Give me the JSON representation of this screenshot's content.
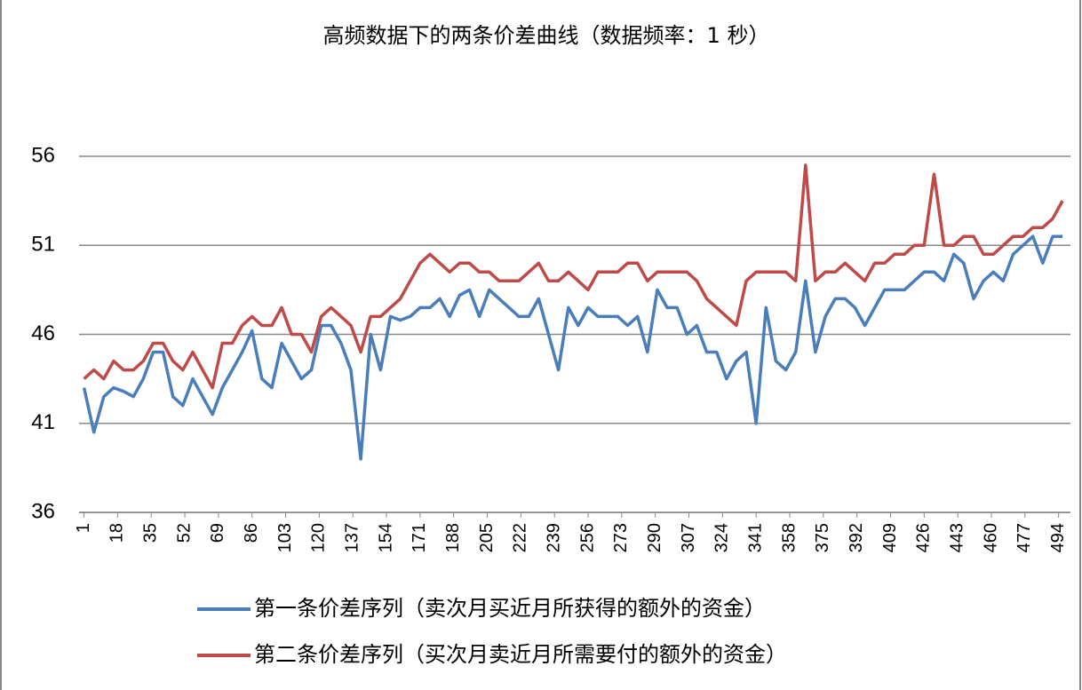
{
  "chart_data": {
    "type": "line",
    "title": "高频数据下的两条价差曲线（数据频率：1 秒）",
    "x": [
      1,
      6,
      11,
      16,
      21,
      26,
      31,
      36,
      41,
      46,
      51,
      56,
      61,
      66,
      71,
      76,
      81,
      86,
      91,
      96,
      101,
      106,
      111,
      116,
      121,
      126,
      131,
      136,
      141,
      146,
      151,
      156,
      161,
      166,
      171,
      176,
      181,
      186,
      191,
      196,
      201,
      206,
      211,
      216,
      221,
      226,
      231,
      236,
      241,
      246,
      251,
      256,
      261,
      266,
      271,
      276,
      281,
      286,
      291,
      296,
      301,
      306,
      311,
      316,
      321,
      326,
      331,
      336,
      341,
      346,
      351,
      356,
      361,
      366,
      371,
      376,
      381,
      386,
      391,
      396,
      401,
      406,
      411,
      416,
      421,
      426,
      431,
      436,
      441,
      446,
      451,
      456,
      461,
      466,
      471,
      476,
      481,
      486,
      491,
      496
    ],
    "series": [
      {
        "name": "第一条价差序列（卖次月买近月所获得的额外的资金）",
        "color": "#4a7ebb",
        "values": [
          43,
          40.5,
          42.5,
          43,
          42.8,
          42.5,
          43.5,
          45,
          45,
          42.5,
          42,
          43.5,
          42.5,
          41.5,
          43,
          44,
          45,
          46.2,
          43.5,
          43,
          45.5,
          44.5,
          43.5,
          44,
          46.5,
          46.5,
          45.5,
          44,
          39,
          46,
          44,
          47,
          46.8,
          47,
          47.5,
          47.5,
          48,
          47,
          48.2,
          48.5,
          47,
          48.5,
          48,
          47.5,
          47,
          47,
          48,
          46,
          44,
          47.5,
          46.5,
          47.5,
          47,
          47,
          47,
          46.5,
          47,
          45,
          48.5,
          47.5,
          47.5,
          46,
          46.5,
          45,
          45,
          43.5,
          44.5,
          45,
          41,
          47.5,
          44.5,
          44,
          45,
          49,
          45,
          47,
          48,
          48,
          47.5,
          46.5,
          47.5,
          48.5,
          48.5,
          48.5,
          49,
          49.5,
          49.5,
          49,
          50.5,
          50,
          48,
          49,
          49.5,
          49,
          50.5,
          51,
          51.5,
          50,
          51.5,
          51.5
        ]
      },
      {
        "name": "第二条价差序列（买次月卖近月所需要付的额外的资金）",
        "color": "#be4b48",
        "values": [
          43.5,
          44,
          43.5,
          44.5,
          44,
          44,
          44.5,
          45.5,
          45.5,
          44.5,
          44,
          45,
          44,
          43,
          45.5,
          45.5,
          46.5,
          47,
          46.5,
          46.5,
          47.5,
          46,
          46,
          45,
          47,
          47.5,
          47,
          46.5,
          45,
          47,
          47,
          47.5,
          48,
          49,
          50,
          50.5,
          50,
          49.5,
          50,
          50,
          49.5,
          49.5,
          49,
          49,
          49,
          49.5,
          50,
          49,
          49,
          49.5,
          49,
          48.5,
          49.5,
          49.5,
          49.5,
          50,
          50,
          49,
          49.5,
          49.5,
          49.5,
          49.5,
          49,
          48,
          47.5,
          47,
          46.5,
          49,
          49.5,
          49.5,
          49.5,
          49.5,
          49,
          55.5,
          49,
          49.5,
          49.5,
          50,
          49.5,
          49,
          50,
          50,
          50.5,
          50.5,
          51,
          51,
          55,
          51,
          51,
          51.5,
          51.5,
          50.5,
          50.5,
          51,
          51.5,
          51.5,
          52,
          52,
          52.5,
          53.5
        ]
      }
    ],
    "xlim": [
      -1.5,
      500
    ],
    "xticks": [
      1,
      18,
      35,
      52,
      69,
      86,
      103,
      120,
      137,
      154,
      171,
      188,
      205,
      222,
      239,
      256,
      273,
      290,
      307,
      324,
      341,
      358,
      375,
      392,
      409,
      426,
      443,
      460,
      477,
      494
    ],
    "ylim": [
      36,
      56
    ],
    "yticks": [
      36,
      41,
      46,
      51,
      56
    ],
    "grid": true,
    "legend": "bottom"
  }
}
